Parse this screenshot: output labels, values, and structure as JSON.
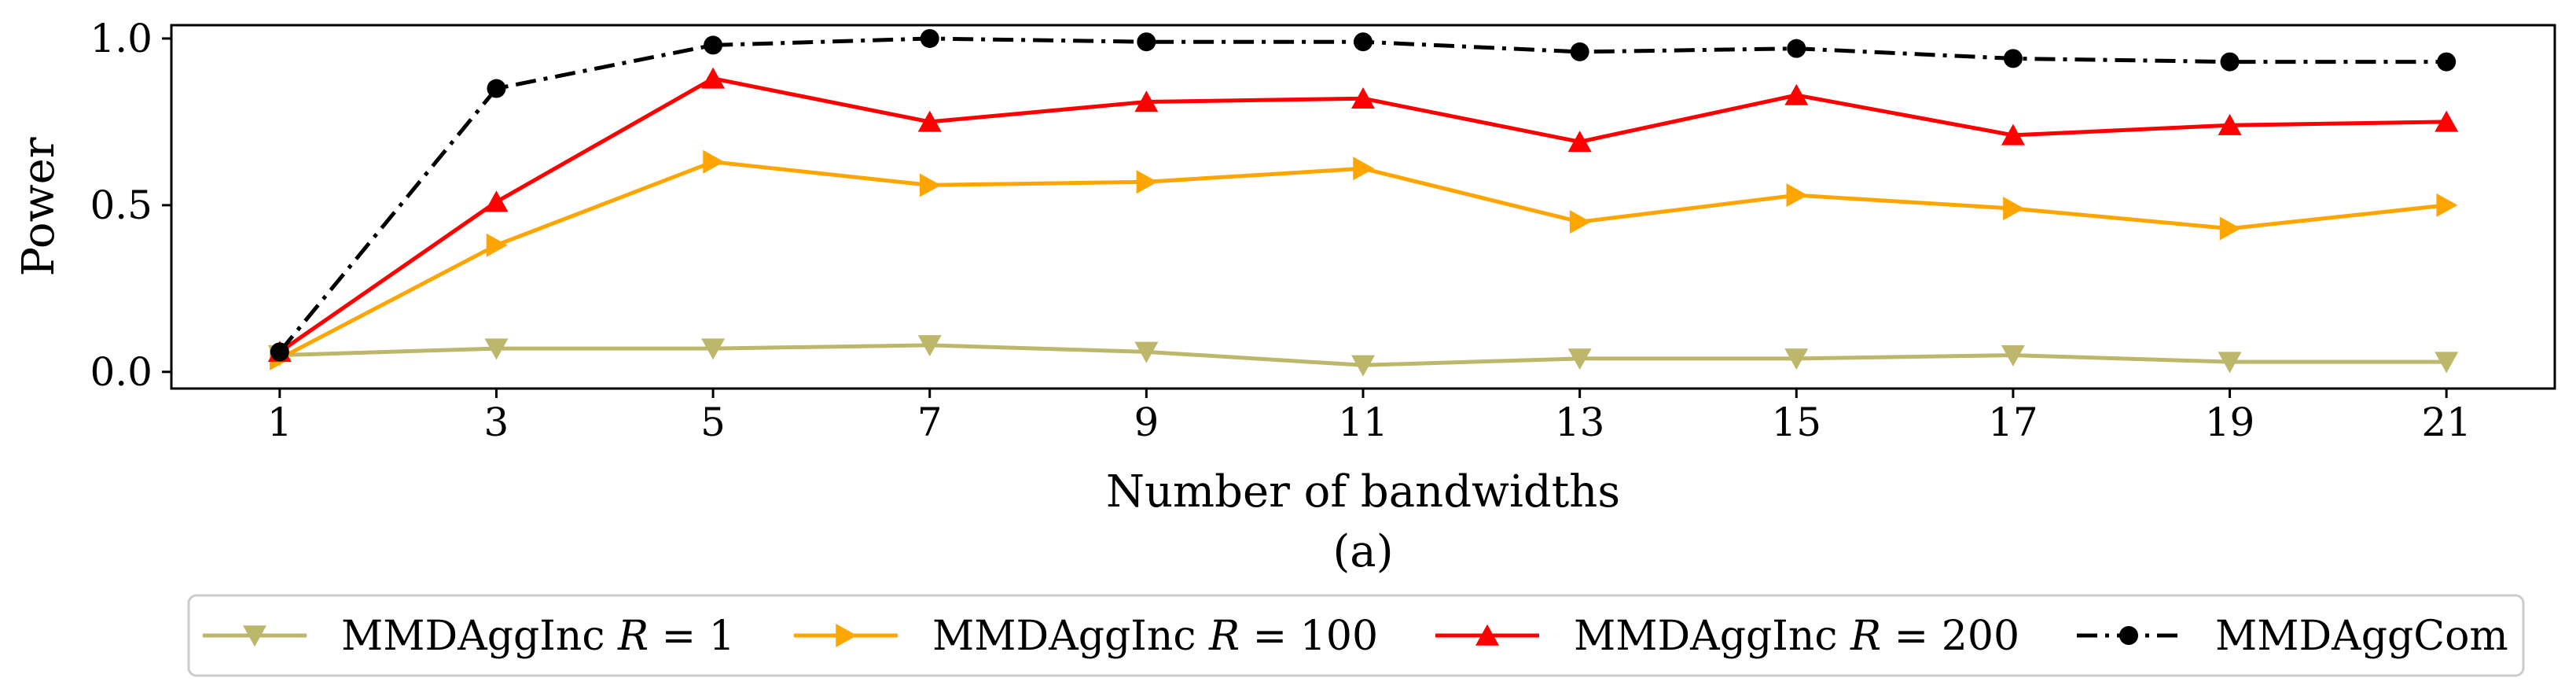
{
  "chart_data": {
    "type": "line",
    "title": "",
    "caption": "(a)",
    "xlabel": "Number of bandwidths",
    "ylabel": "Power",
    "x": [
      1,
      3,
      5,
      7,
      9,
      11,
      13,
      15,
      17,
      19,
      21
    ],
    "xlim": [
      0,
      22
    ],
    "ylim": [
      -0.05,
      1.04
    ],
    "x_ticks": [
      "1",
      "3",
      "5",
      "7",
      "9",
      "11",
      "13",
      "15",
      "17",
      "19",
      "21"
    ],
    "y_ticks": [
      0.0,
      0.5,
      1.0
    ],
    "y_tick_labels": [
      "0.0",
      "0.5",
      "1.0"
    ],
    "grid": false,
    "legend_placement": "bottom-center-outside",
    "series": [
      {
        "name": "MMDAggInc R = 1",
        "label_prefix": "MMDAggInc ",
        "label_math": "R",
        "label_suffix": " = 1",
        "color": "#bdb76b",
        "marker": "triangle-down",
        "linestyle": "solid",
        "values": [
          0.05,
          0.07,
          0.07,
          0.08,
          0.06,
          0.02,
          0.04,
          0.04,
          0.05,
          0.03,
          0.03
        ]
      },
      {
        "name": "MMDAggInc R = 100",
        "label_prefix": "MMDAggInc ",
        "label_math": "R",
        "label_suffix": " = 100",
        "color": "#ffa500",
        "marker": "triangle-right",
        "linestyle": "solid",
        "values": [
          0.04,
          0.38,
          0.63,
          0.56,
          0.57,
          0.61,
          0.45,
          0.53,
          0.49,
          0.43,
          0.5
        ]
      },
      {
        "name": "MMDAggInc R = 200",
        "label_prefix": "MMDAggInc ",
        "label_math": "R",
        "label_suffix": " = 200",
        "color": "#ff0000",
        "marker": "triangle-up",
        "linestyle": "solid",
        "values": [
          0.06,
          0.51,
          0.88,
          0.75,
          0.81,
          0.82,
          0.69,
          0.83,
          0.71,
          0.74,
          0.75
        ]
      },
      {
        "name": "MMDAggCom",
        "label_prefix": "MMDAggCom",
        "label_math": "",
        "label_suffix": "",
        "color": "#000000",
        "marker": "circle",
        "linestyle": "dashdot",
        "values": [
          0.06,
          0.85,
          0.98,
          1.0,
          0.99,
          0.99,
          0.96,
          0.97,
          0.94,
          0.93,
          0.93
        ]
      }
    ]
  }
}
